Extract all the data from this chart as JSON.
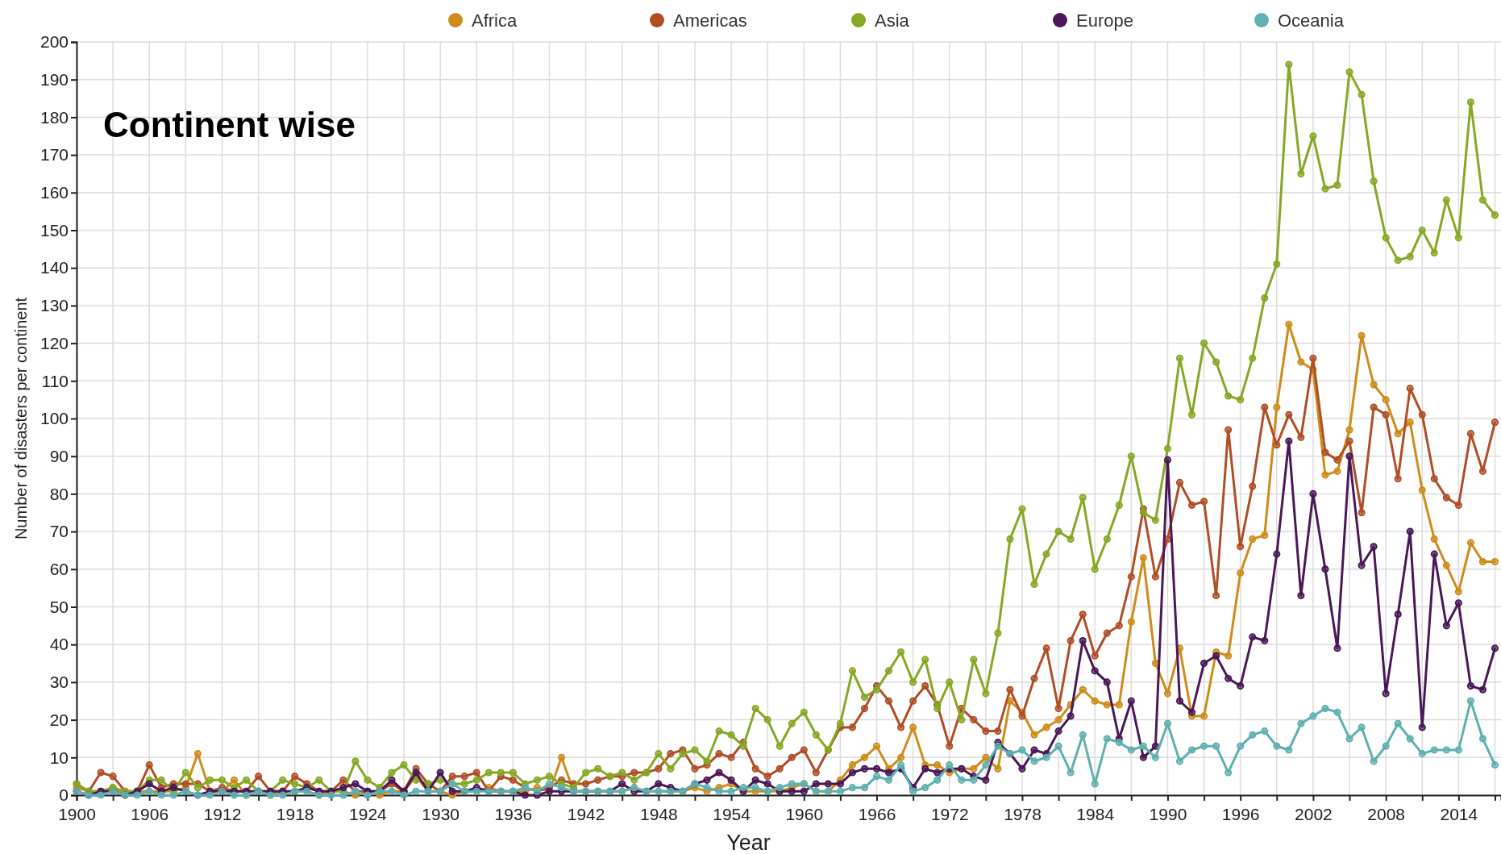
{
  "chart_data": {
    "type": "line",
    "title": "Continent wise",
    "xlabel": "Year",
    "ylabel": "Number of disasters per continent",
    "x": [
      1900,
      1901,
      1902,
      1903,
      1904,
      1905,
      1906,
      1907,
      1908,
      1909,
      1910,
      1911,
      1912,
      1913,
      1914,
      1915,
      1916,
      1917,
      1918,
      1919,
      1920,
      1921,
      1922,
      1923,
      1924,
      1925,
      1926,
      1927,
      1928,
      1929,
      1930,
      1931,
      1932,
      1933,
      1934,
      1935,
      1936,
      1937,
      1938,
      1939,
      1940,
      1941,
      1942,
      1943,
      1944,
      1945,
      1946,
      1947,
      1948,
      1949,
      1950,
      1951,
      1952,
      1953,
      1954,
      1955,
      1956,
      1957,
      1958,
      1959,
      1960,
      1961,
      1962,
      1963,
      1964,
      1965,
      1966,
      1967,
      1968,
      1969,
      1970,
      1971,
      1972,
      1973,
      1974,
      1975,
      1976,
      1977,
      1978,
      1979,
      1980,
      1981,
      1982,
      1983,
      1984,
      1985,
      1986,
      1987,
      1988,
      1989,
      1990,
      1991,
      1992,
      1993,
      1994,
      1995,
      1996,
      1997,
      1998,
      1999,
      2000,
      2001,
      2002,
      2003,
      2004,
      2005,
      2006,
      2007,
      2008,
      2009,
      2010,
      2011,
      2012,
      2013,
      2014,
      2015,
      2016,
      2017
    ],
    "series": [
      {
        "name": "Africa",
        "color": "#d08c1a",
        "values": [
          2,
          1,
          1,
          2,
          0,
          1,
          1,
          1,
          1,
          2,
          11,
          1,
          1,
          4,
          0,
          1,
          0,
          1,
          1,
          1,
          0,
          1,
          1,
          0,
          1,
          0,
          1,
          1,
          5,
          1,
          1,
          0,
          1,
          1,
          2,
          1,
          1,
          1,
          2,
          1,
          10,
          1,
          1,
          1,
          1,
          1,
          2,
          1,
          1,
          1,
          1,
          2,
          1,
          2,
          3,
          1,
          1,
          1,
          1,
          2,
          3,
          1,
          1,
          4,
          8,
          10,
          13,
          7,
          10,
          18,
          8,
          8,
          6,
          7,
          7,
          10,
          7,
          25,
          22,
          16,
          18,
          20,
          24,
          28,
          25,
          24,
          24,
          46,
          63,
          35,
          27,
          39,
          21,
          21,
          38,
          37,
          59,
          68,
          69,
          103,
          125,
          115,
          113,
          85,
          86,
          97,
          122,
          109,
          105,
          96,
          99,
          81,
          68,
          61,
          54,
          67,
          62,
          62
        ]
      },
      {
        "name": "Americas",
        "color": "#b04e26",
        "values": [
          3,
          1,
          6,
          5,
          1,
          1,
          8,
          2,
          3,
          3,
          3,
          1,
          2,
          1,
          1,
          5,
          1,
          1,
          5,
          3,
          1,
          1,
          4,
          1,
          1,
          1,
          3,
          1,
          7,
          3,
          1,
          5,
          5,
          6,
          1,
          5,
          4,
          2,
          1,
          2,
          4,
          3,
          3,
          4,
          5,
          5,
          6,
          6,
          7,
          11,
          12,
          7,
          8,
          11,
          10,
          14,
          7,
          5,
          7,
          10,
          12,
          6,
          12,
          18,
          18,
          23,
          29,
          25,
          18,
          25,
          29,
          24,
          13,
          23,
          20,
          17,
          17,
          28,
          21,
          31,
          39,
          23,
          41,
          48,
          37,
          43,
          45,
          58,
          76,
          58,
          68,
          83,
          77,
          78,
          53,
          97,
          66,
          82,
          103,
          93,
          101,
          95,
          116,
          91,
          89,
          94,
          75,
          103,
          101,
          84,
          108,
          101,
          84,
          79,
          77,
          96,
          86,
          99
        ]
      },
      {
        "name": "Asia",
        "color": "#86a824",
        "values": [
          3,
          1,
          1,
          2,
          1,
          1,
          4,
          4,
          1,
          6,
          2,
          4,
          4,
          2,
          4,
          1,
          1,
          4,
          3,
          2,
          4,
          1,
          1,
          9,
          4,
          2,
          6,
          8,
          4,
          3,
          4,
          3,
          3,
          4,
          6,
          6,
          6,
          3,
          4,
          5,
          3,
          2,
          6,
          7,
          5,
          6,
          4,
          6,
          11,
          7,
          11,
          12,
          9,
          17,
          16,
          13,
          23,
          20,
          13,
          19,
          22,
          16,
          12,
          19,
          33,
          26,
          28,
          33,
          38,
          30,
          36,
          23,
          30,
          20,
          36,
          27,
          43,
          68,
          76,
          56,
          64,
          70,
          68,
          79,
          60,
          68,
          77,
          90,
          75,
          73,
          92,
          116,
          101,
          120,
          115,
          106,
          105,
          116,
          132,
          141,
          194,
          165,
          175,
          161,
          162,
          192,
          186,
          163,
          148,
          142,
          143,
          150,
          144,
          158,
          148,
          184,
          158,
          154
        ]
      },
      {
        "name": "Europe",
        "color": "#4a1858",
        "values": [
          1,
          0,
          1,
          1,
          0,
          1,
          3,
          1,
          2,
          1,
          0,
          1,
          1,
          1,
          1,
          1,
          1,
          1,
          1,
          2,
          1,
          1,
          2,
          3,
          1,
          1,
          4,
          1,
          6,
          1,
          6,
          1,
          1,
          2,
          1,
          1,
          1,
          0,
          0,
          1,
          1,
          1,
          1,
          1,
          1,
          3,
          1,
          1,
          3,
          2,
          1,
          3,
          4,
          6,
          4,
          1,
          4,
          3,
          1,
          1,
          1,
          3,
          3,
          3,
          6,
          7,
          7,
          6,
          7,
          2,
          7,
          6,
          7,
          7,
          5,
          4,
          14,
          11,
          7,
          12,
          11,
          17,
          21,
          41,
          33,
          30,
          15,
          25,
          10,
          13,
          89,
          25,
          22,
          35,
          37,
          31,
          29,
          42,
          41,
          64,
          94,
          53,
          80,
          60,
          39,
          90,
          61,
          66,
          27,
          48,
          70,
          18,
          64,
          45,
          51,
          29,
          28,
          39
        ]
      },
      {
        "name": "Oceania",
        "color": "#5fb0b0",
        "values": [
          1,
          0,
          0,
          1,
          0,
          0,
          1,
          0,
          0,
          1,
          0,
          0,
          1,
          0,
          0,
          1,
          0,
          0,
          1,
          1,
          0,
          0,
          0,
          1,
          0,
          1,
          1,
          0,
          1,
          1,
          1,
          3,
          1,
          1,
          1,
          1,
          1,
          2,
          1,
          3,
          2,
          1,
          1,
          1,
          1,
          1,
          2,
          1,
          1,
          1,
          1,
          3,
          2,
          1,
          1,
          2,
          2,
          1,
          2,
          3,
          3,
          1,
          1,
          1,
          2,
          2,
          5,
          4,
          8,
          1,
          2,
          4,
          8,
          4,
          4,
          8,
          13,
          11,
          12,
          9,
          10,
          13,
          6,
          16,
          3,
          15,
          14,
          12,
          13,
          10,
          19,
          9,
          12,
          13,
          13,
          6,
          13,
          16,
          17,
          13,
          12,
          19,
          21,
          23,
          22,
          15,
          18,
          9,
          13,
          19,
          15,
          11,
          12,
          12,
          12,
          25,
          15,
          8
        ]
      }
    ],
    "xlim": [
      1900,
      2017.5
    ],
    "xticks": [
      1900,
      {
        "value": 1903,
        "label": null
      },
      1906,
      {
        "value": 1909,
        "label": null
      },
      1912,
      {
        "value": 1915,
        "label": null
      },
      1918,
      {
        "value": 1921,
        "label": null
      },
      1924,
      {
        "value": 1927,
        "label": null
      },
      1930,
      {
        "value": 1933,
        "label": null
      },
      1936,
      {
        "value": 1939,
        "label": null
      },
      1942,
      {
        "value": 1945,
        "label": null
      },
      1948,
      {
        "value": 1951,
        "label": null
      },
      1954,
      {
        "value": 1957,
        "label": null
      },
      1960,
      {
        "value": 1963,
        "label": null
      },
      1966,
      {
        "value": 1969,
        "label": null
      },
      1972,
      {
        "value": 1975,
        "label": null
      },
      1978,
      {
        "value": 1981,
        "label": null
      },
      1984,
      {
        "value": 1987,
        "label": null
      },
      1990,
      {
        "value": 1993,
        "label": null
      },
      1996,
      {
        "value": 1999,
        "label": null
      },
      2002,
      {
        "value": 2005,
        "label": null
      },
      2008,
      {
        "value": 2011,
        "label": null
      },
      2014,
      {
        "value": 2017,
        "label": null
      }
    ],
    "ylim": [
      0,
      200
    ],
    "yticks": [
      0,
      10,
      20,
      30,
      40,
      50,
      60,
      70,
      80,
      90,
      100,
      110,
      120,
      130,
      140,
      150,
      160,
      170,
      180,
      190,
      200
    ],
    "grid": true,
    "legend": "top",
    "marker": "circle",
    "line_style": "solid"
  }
}
